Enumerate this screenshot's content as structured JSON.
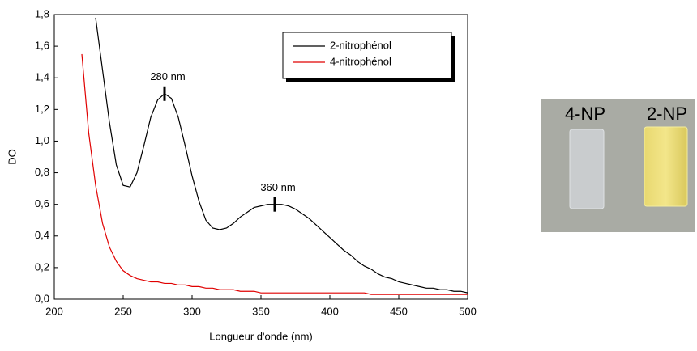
{
  "chart_data": {
    "type": "line",
    "x_label": "Longueur d'onde (nm)",
    "y_label": "DO",
    "x": [
      220,
      225,
      230,
      235,
      240,
      245,
      250,
      255,
      260,
      265,
      270,
      275,
      280,
      285,
      290,
      295,
      300,
      305,
      310,
      315,
      320,
      325,
      330,
      335,
      340,
      345,
      350,
      355,
      360,
      365,
      370,
      375,
      380,
      385,
      390,
      395,
      400,
      405,
      410,
      415,
      420,
      425,
      430,
      435,
      440,
      445,
      450,
      455,
      460,
      465,
      470,
      475,
      480,
      485,
      490,
      495,
      500
    ],
    "series": [
      {
        "name": "2-nitrophénol",
        "color": "#000000",
        "values": [
          null,
          null,
          1.78,
          1.45,
          1.12,
          0.85,
          0.72,
          0.71,
          0.8,
          0.97,
          1.15,
          1.26,
          1.3,
          1.27,
          1.15,
          0.97,
          0.78,
          0.62,
          0.5,
          0.45,
          0.44,
          0.45,
          0.48,
          0.52,
          0.55,
          0.58,
          0.59,
          0.6,
          0.6,
          0.6,
          0.59,
          0.57,
          0.54,
          0.51,
          0.47,
          0.43,
          0.39,
          0.35,
          0.31,
          0.28,
          0.24,
          0.21,
          0.19,
          0.16,
          0.14,
          0.13,
          0.11,
          0.1,
          0.09,
          0.08,
          0.07,
          0.07,
          0.06,
          0.06,
          0.05,
          0.05,
          0.04
        ]
      },
      {
        "name": "4-nitrophénol",
        "color": "#e00000",
        "values": [
          1.55,
          1.05,
          0.72,
          0.48,
          0.33,
          0.24,
          0.18,
          0.15,
          0.13,
          0.12,
          0.11,
          0.11,
          0.1,
          0.1,
          0.09,
          0.09,
          0.08,
          0.08,
          0.07,
          0.07,
          0.06,
          0.06,
          0.06,
          0.05,
          0.05,
          0.05,
          0.04,
          0.04,
          0.04,
          0.04,
          0.04,
          0.04,
          0.04,
          0.04,
          0.04,
          0.04,
          0.04,
          0.04,
          0.04,
          0.04,
          0.04,
          0.04,
          0.03,
          0.03,
          0.03,
          0.03,
          0.03,
          0.03,
          0.03,
          0.03,
          0.03,
          0.03,
          0.03,
          0.03,
          0.03,
          0.03,
          0.03
        ]
      }
    ],
    "annotations": [
      {
        "text": "280 nm",
        "x": 280,
        "y": 1.3
      },
      {
        "text": "360 nm",
        "x": 360,
        "y": 0.6
      }
    ],
    "xlim": [
      200,
      500
    ],
    "xticks": [
      200,
      250,
      300,
      350,
      400,
      450,
      500
    ],
    "ylim": [
      0,
      1.8
    ],
    "yticks": [
      {
        "value": 0,
        "label": "0,0"
      },
      {
        "value": 0.2,
        "label": "0,2"
      },
      {
        "value": 0.4,
        "label": "0,4"
      },
      {
        "value": 0.6,
        "label": "0,6"
      },
      {
        "value": 0.8,
        "label": "0,8"
      },
      {
        "value": 1.0,
        "label": "1,0"
      },
      {
        "value": 1.2,
        "label": "1,2"
      },
      {
        "value": 1.4,
        "label": "1,4"
      },
      {
        "value": 1.6,
        "label": "1,6"
      },
      {
        "value": 1.8,
        "label": "1,8"
      }
    ],
    "legend": "top-right"
  },
  "photo": {
    "labels": [
      "4-NP",
      "2-NP"
    ]
  }
}
